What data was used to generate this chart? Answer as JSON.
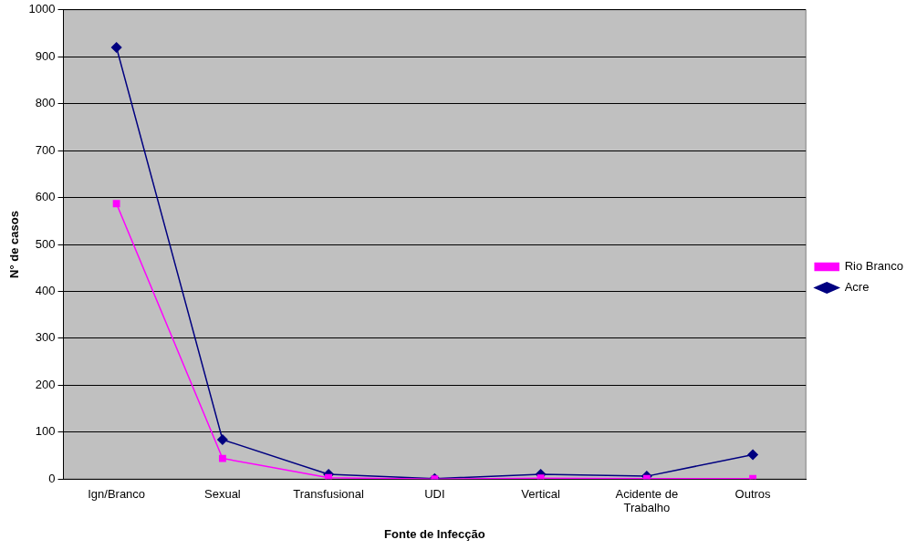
{
  "chart_data": {
    "type": "line",
    "xlabel": "Fonte de Infecção",
    "ylabel": "N° de casos",
    "categories": [
      "Ign/Branco",
      "Sexual",
      "Transfusional",
      "UDI",
      "Vertical",
      "Acidente de Trabalho",
      "Outros"
    ],
    "series": [
      {
        "name": "Acre",
        "color": "#000080",
        "marker": "diamond",
        "values": [
          920,
          84,
          10,
          1,
          10,
          6,
          52
        ]
      },
      {
        "name": "Rio Branco",
        "color": "#ff00ff",
        "marker": "square",
        "values": [
          587,
          44,
          3,
          0,
          2,
          1,
          1
        ]
      }
    ],
    "ylim": [
      0,
      1000
    ],
    "yticks": [
      0,
      100,
      200,
      300,
      400,
      500,
      600,
      700,
      800,
      900,
      1000
    ],
    "grid": "y",
    "legend": "right",
    "line_style": "solid"
  }
}
